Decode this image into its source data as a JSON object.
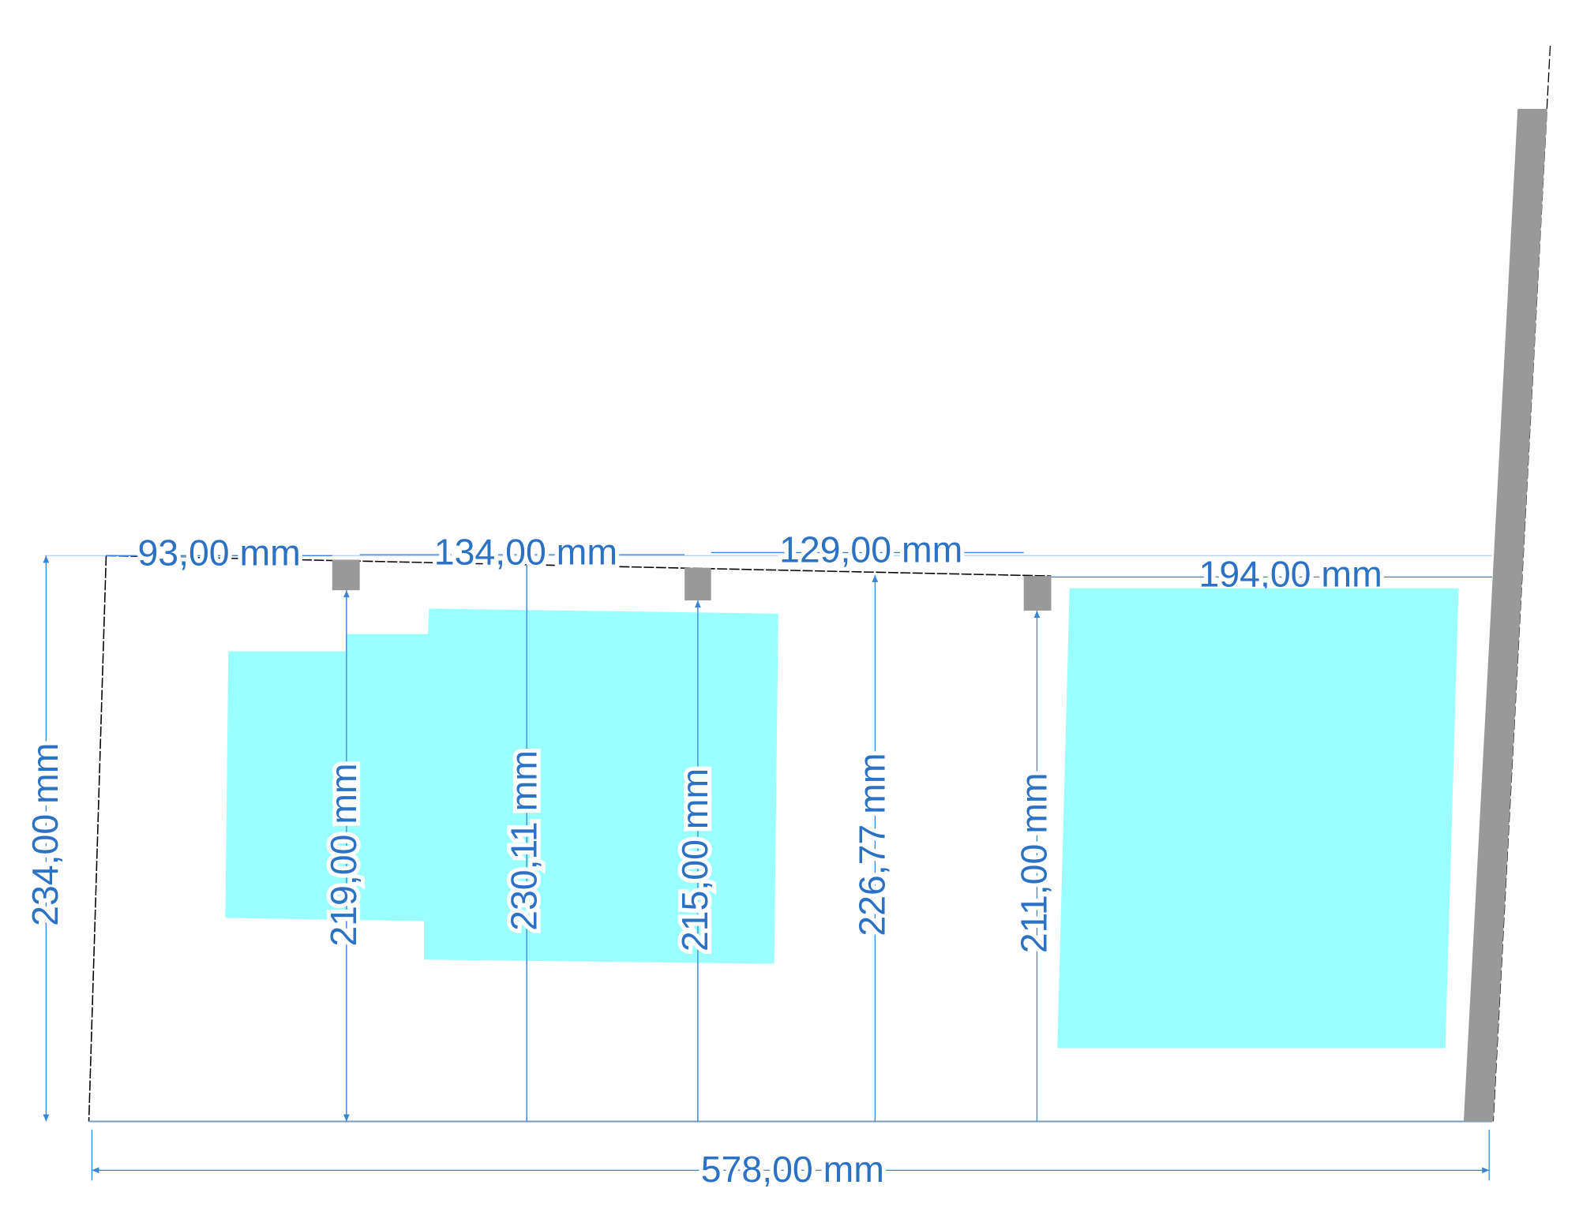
{
  "dimensions": {
    "top": [
      "93,00 mm",
      "134,00 mm",
      "129,00 mm",
      "194,00 mm"
    ],
    "left": "234,00 mm",
    "heights": [
      "219,00 mm",
      "230,11 mm",
      "215,00 mm",
      "226,77 mm",
      "211,00 mm"
    ],
    "bottom": "578,00 mm"
  }
}
